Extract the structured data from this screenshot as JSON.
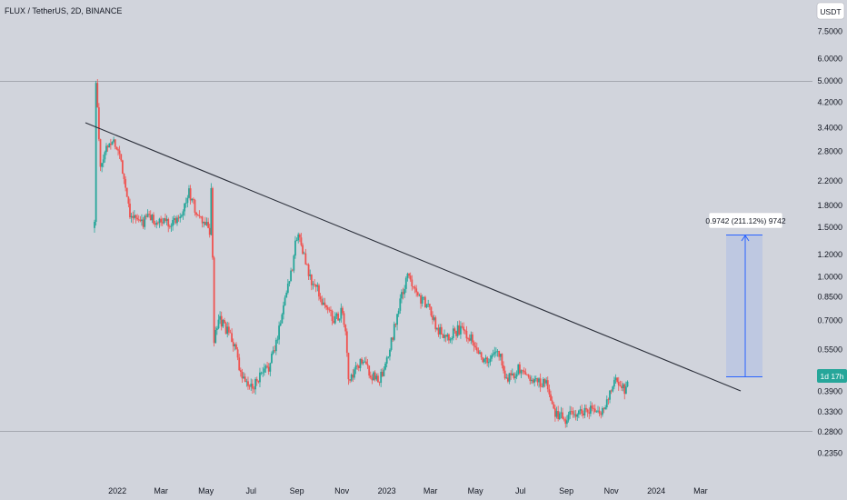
{
  "header": {
    "title": "FLUX / TetherUS, 2D, BINANCE"
  },
  "price_axis": {
    "currency": "USDT",
    "labels": [
      "7.5000",
      "6.0000",
      "5.0000",
      "4.2000",
      "3.4000",
      "2.8000",
      "2.2000",
      "1.8000",
      "1.5000",
      "1.2000",
      "1.0000",
      "0.8500",
      "0.7000",
      "0.5500",
      "0.3900",
      "0.3300",
      "0.2800",
      "0.2350"
    ],
    "current_timer": "1d 17h"
  },
  "measure_tool": {
    "label": "0.9742 (211.12%) 9742"
  },
  "colors": {
    "background": "#d1d4dc",
    "up": "#26a69a",
    "down": "#ef5350",
    "trendline": "#2a2e39",
    "measure_fill": "#aebde6",
    "measure_stroke": "#2962ff",
    "timer_bg": "#26a69a"
  },
  "chart_data": {
    "type": "candlestick",
    "title": "FLUX / TetherUS, 2D, BINANCE",
    "x_axis": {
      "tick_labels": [
        "2022",
        "Mar",
        "May",
        "Jul",
        "Sep",
        "Nov",
        "2023",
        "Mar",
        "May",
        "Jul",
        "Sep",
        "Nov",
        "2024",
        "Mar"
      ]
    },
    "y_axis": {
      "scale": "log",
      "unit": "USDT",
      "range": [
        0.22,
        9.0
      ]
    },
    "grid": false,
    "series": [
      {
        "columns": [
          "date",
          "close"
        ],
        "points": [
          [
            "2021-12-01",
            1.55
          ],
          [
            "2021-12-03",
            5.0
          ],
          [
            "2021-12-09",
            2.4
          ],
          [
            "2021-12-17",
            2.9
          ],
          [
            "2021-12-25",
            3.1
          ],
          [
            "2021-12-31",
            2.9
          ],
          [
            "2022-01-06",
            2.6
          ],
          [
            "2022-01-12",
            2.1
          ],
          [
            "2022-01-18",
            1.7
          ],
          [
            "2022-01-26",
            1.6
          ],
          [
            "2022-02-03",
            1.55
          ],
          [
            "2022-02-11",
            1.65
          ],
          [
            "2022-02-19",
            1.6
          ],
          [
            "2022-02-27",
            1.55
          ],
          [
            "2022-03-07",
            1.6
          ],
          [
            "2022-03-15",
            1.55
          ],
          [
            "2022-03-25",
            1.65
          ],
          [
            "2022-04-02",
            1.8
          ],
          [
            "2022-04-08",
            2.0
          ],
          [
            "2022-04-14",
            1.8
          ],
          [
            "2022-04-22",
            1.6
          ],
          [
            "2022-04-30",
            1.55
          ],
          [
            "2022-05-06",
            1.45
          ],
          [
            "2022-05-08",
            2.1
          ],
          [
            "2022-05-12",
            0.6
          ],
          [
            "2022-05-20",
            0.7
          ],
          [
            "2022-05-28",
            0.65
          ],
          [
            "2022-06-05",
            0.6
          ],
          [
            "2022-06-11",
            0.55
          ],
          [
            "2022-06-15",
            0.45
          ],
          [
            "2022-06-23",
            0.42
          ],
          [
            "2022-07-01",
            0.4
          ],
          [
            "2022-07-09",
            0.43
          ],
          [
            "2022-07-17",
            0.45
          ],
          [
            "2022-07-25",
            0.48
          ],
          [
            "2022-08-02",
            0.55
          ],
          [
            "2022-08-10",
            0.7
          ],
          [
            "2022-08-18",
            0.9
          ],
          [
            "2022-08-26",
            1.1
          ],
          [
            "2022-09-01",
            1.4
          ],
          [
            "2022-09-07",
            1.35
          ],
          [
            "2022-09-13",
            1.1
          ],
          [
            "2022-09-21",
            0.95
          ],
          [
            "2022-09-29",
            0.9
          ],
          [
            "2022-10-07",
            0.8
          ],
          [
            "2022-10-15",
            0.75
          ],
          [
            "2022-10-23",
            0.7
          ],
          [
            "2022-10-31",
            0.75
          ],
          [
            "2022-11-06",
            0.65
          ],
          [
            "2022-11-10",
            0.42
          ],
          [
            "2022-11-18",
            0.45
          ],
          [
            "2022-11-26",
            0.5
          ],
          [
            "2022-12-04",
            0.48
          ],
          [
            "2022-12-12",
            0.44
          ],
          [
            "2022-12-20",
            0.43
          ],
          [
            "2022-12-28",
            0.45
          ],
          [
            "2023-01-05",
            0.55
          ],
          [
            "2023-01-13",
            0.7
          ],
          [
            "2023-01-21",
            0.85
          ],
          [
            "2023-01-29",
            1.0
          ],
          [
            "2023-02-06",
            0.95
          ],
          [
            "2023-02-14",
            0.85
          ],
          [
            "2023-02-22",
            0.8
          ],
          [
            "2023-03-02",
            0.75
          ],
          [
            "2023-03-10",
            0.65
          ],
          [
            "2023-03-18",
            0.63
          ],
          [
            "2023-03-26",
            0.62
          ],
          [
            "2023-04-03",
            0.64
          ],
          [
            "2023-04-11",
            0.65
          ],
          [
            "2023-04-19",
            0.63
          ],
          [
            "2023-04-27",
            0.6
          ],
          [
            "2023-05-05",
            0.55
          ],
          [
            "2023-05-13",
            0.5
          ],
          [
            "2023-05-21",
            0.5
          ],
          [
            "2023-05-29",
            0.55
          ],
          [
            "2023-06-06",
            0.5
          ],
          [
            "2023-06-12",
            0.43
          ],
          [
            "2023-06-20",
            0.45
          ],
          [
            "2023-06-28",
            0.47
          ],
          [
            "2023-07-06",
            0.45
          ],
          [
            "2023-07-14",
            0.44
          ],
          [
            "2023-07-22",
            0.42
          ],
          [
            "2023-07-30",
            0.42
          ],
          [
            "2023-08-07",
            0.41
          ],
          [
            "2023-08-15",
            0.33
          ],
          [
            "2023-08-23",
            0.32
          ],
          [
            "2023-08-31",
            0.31
          ],
          [
            "2023-09-08",
            0.32
          ],
          [
            "2023-09-16",
            0.33
          ],
          [
            "2023-09-24",
            0.33
          ],
          [
            "2023-10-02",
            0.34
          ],
          [
            "2023-10-10",
            0.33
          ],
          [
            "2023-10-16",
            0.32
          ],
          [
            "2023-10-24",
            0.35
          ],
          [
            "2023-11-01",
            0.4
          ],
          [
            "2023-11-07",
            0.43
          ],
          [
            "2023-11-13",
            0.41
          ],
          [
            "2023-11-19",
            0.4
          ],
          [
            "2023-11-23",
            0.44
          ]
        ]
      }
    ],
    "annotations": [
      {
        "type": "trendline",
        "from": [
          "2021-11-30",
          3.5
        ],
        "to": [
          "2023-11-29",
          0.41
        ]
      },
      {
        "type": "horizontal-line",
        "y": 5.0
      },
      {
        "type": "horizontal-line",
        "y": 0.282
      },
      {
        "type": "price-range",
        "from": [
          "2023-11-25",
          0.46
        ],
        "to": [
          "2023-12-18",
          1.43
        ],
        "label": "0.9742 (211.12%) 9742"
      }
    ]
  }
}
